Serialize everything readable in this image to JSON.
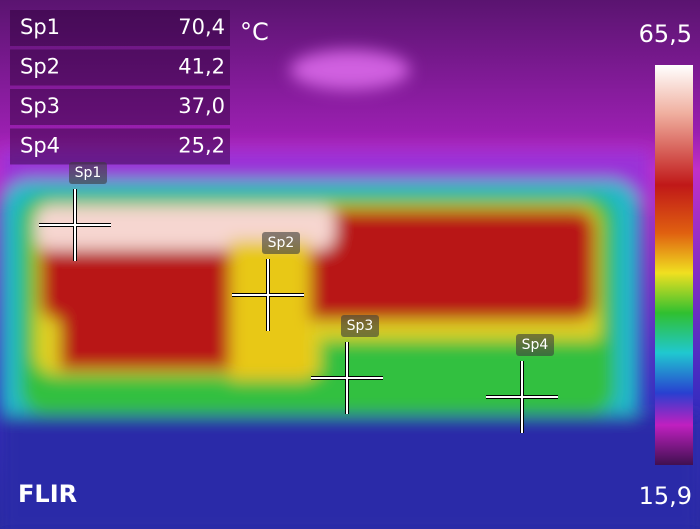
{
  "measurements": {
    "unit": "°C",
    "spots": [
      {
        "label": "Sp1",
        "value": "70,4"
      },
      {
        "label": "Sp2",
        "value": "41,2"
      },
      {
        "label": "Sp3",
        "value": "37,0"
      },
      {
        "label": "Sp4",
        "value": "25,2"
      }
    ]
  },
  "scale": {
    "max": "65,5",
    "min": "15,9"
  },
  "brand": "FLIR"
}
